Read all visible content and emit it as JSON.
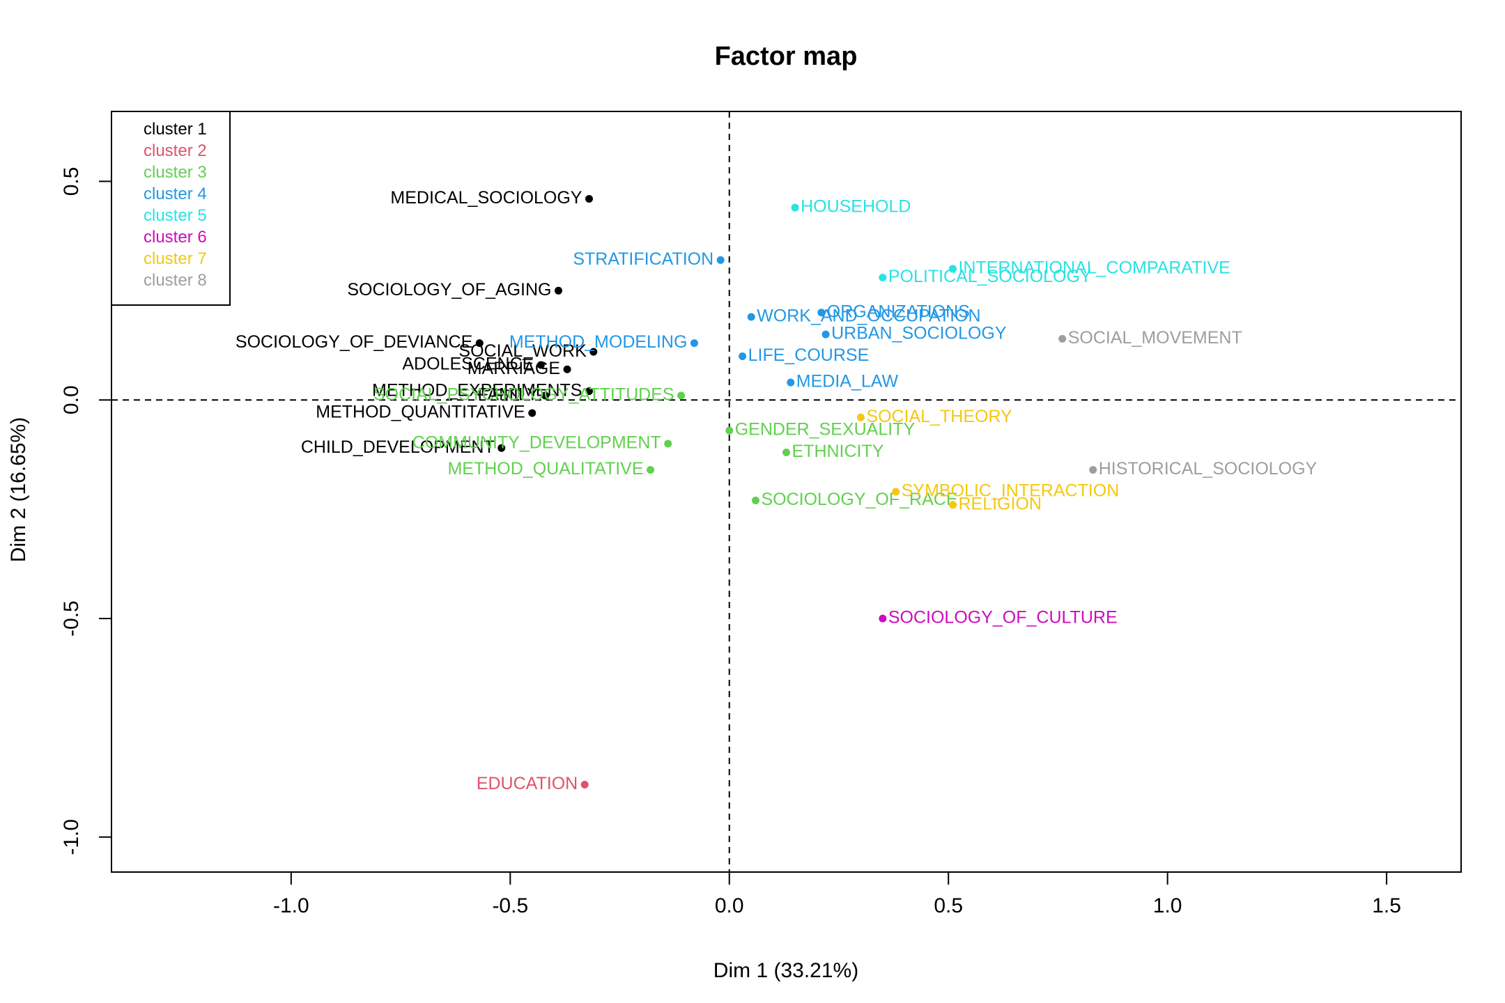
{
  "chart_data": {
    "type": "scatter",
    "title": "Factor map",
    "xlabel": "Dim 1 (33.21%)",
    "ylabel": "Dim 2 (16.65%)",
    "xlim": [
      -1.41,
      1.67
    ],
    "ylim": [
      -1.08,
      0.66
    ],
    "xticks": [
      -1.0,
      -0.5,
      0.0,
      0.5,
      1.0,
      1.5
    ],
    "xtick_labels": [
      "-1.0",
      "-0.5",
      "0.0",
      "0.5",
      "1.0",
      "1.5"
    ],
    "yticks": [
      -1.0,
      -0.5,
      0.0,
      0.5
    ],
    "ytick_labels": [
      "-1.0",
      "-0.5",
      "0.0",
      "0.5"
    ],
    "reference_lines": {
      "x": 0,
      "y": 0,
      "style": "dashed"
    },
    "grid": false,
    "legend_position": "top-left",
    "clusters": [
      {
        "name": "cluster 1",
        "color": "#000000"
      },
      {
        "name": "cluster 2",
        "color": "#DF536B"
      },
      {
        "name": "cluster 3",
        "color": "#61D04F"
      },
      {
        "name": "cluster 4",
        "color": "#2297E6"
      },
      {
        "name": "cluster 5",
        "color": "#28E2E5"
      },
      {
        "name": "cluster 6",
        "color": "#CD0BBC"
      },
      {
        "name": "cluster 7",
        "color": "#F5C710"
      },
      {
        "name": "cluster 8",
        "color": "#9E9E9E"
      }
    ],
    "points": [
      {
        "label": "MEDICAL_SOCIOLOGY",
        "x": -0.32,
        "y": 0.46,
        "cluster": 1
      },
      {
        "label": "SOCIOLOGY_OF_AGING",
        "x": -0.39,
        "y": 0.25,
        "cluster": 1
      },
      {
        "label": "SOCIOLOGY_OF_DEVIANCE",
        "x": -0.57,
        "y": 0.13,
        "cluster": 1
      },
      {
        "label": "ADOLESCENCE",
        "x": -0.43,
        "y": 0.08,
        "cluster": 1
      },
      {
        "label": "MARRIAGE",
        "x": -0.37,
        "y": 0.07,
        "cluster": 1
      },
      {
        "label": "SOCIAL_WORK",
        "x": -0.31,
        "y": 0.11,
        "cluster": 1
      },
      {
        "label": "FAMILY",
        "x": -0.42,
        "y": 0.01,
        "cluster": 1
      },
      {
        "label": "METHOD_EXPERIMENTS",
        "x": -0.32,
        "y": 0.02,
        "cluster": 1
      },
      {
        "label": "METHOD_QUANTITATIVE",
        "x": -0.45,
        "y": -0.03,
        "cluster": 1
      },
      {
        "label": "CHILD_DEVELOPMENT",
        "x": -0.52,
        "y": -0.11,
        "cluster": 1
      },
      {
        "label": "EDUCATION",
        "x": -0.33,
        "y": -0.88,
        "cluster": 2
      },
      {
        "label": "SOCIAL_PSYCHOLOGY_ATTITUDES",
        "x": -0.11,
        "y": 0.01,
        "cluster": 3
      },
      {
        "label": "GENDER_SEXUALITY",
        "x": 0.0,
        "y": -0.07,
        "cluster": 3
      },
      {
        "label": "COMMUNITY_DEVELOPMENT",
        "x": -0.14,
        "y": -0.1,
        "cluster": 3
      },
      {
        "label": "ETHNICITY",
        "x": 0.13,
        "y": -0.12,
        "cluster": 3
      },
      {
        "label": "METHOD_QUALITATIVE",
        "x": -0.18,
        "y": -0.16,
        "cluster": 3
      },
      {
        "label": "SOCIOLOGY_OF_RACE",
        "x": 0.06,
        "y": -0.23,
        "cluster": 3
      },
      {
        "label": "STRATIFICATION",
        "x": -0.02,
        "y": 0.32,
        "cluster": 4
      },
      {
        "label": "WORK_AND_OCCUPATION",
        "x": 0.05,
        "y": 0.19,
        "cluster": 4
      },
      {
        "label": "METHOD_MODELING",
        "x": -0.08,
        "y": 0.13,
        "cluster": 4
      },
      {
        "label": "LIFE_COURSE",
        "x": 0.03,
        "y": 0.1,
        "cluster": 4
      },
      {
        "label": "ORGANIZATIONS",
        "x": 0.21,
        "y": 0.2,
        "cluster": 4
      },
      {
        "label": "URBAN_SOCIOLOGY",
        "x": 0.22,
        "y": 0.15,
        "cluster": 4
      },
      {
        "label": "MEDIA_LAW",
        "x": 0.14,
        "y": 0.04,
        "cluster": 4
      },
      {
        "label": "HOUSEHOLD",
        "x": 0.15,
        "y": 0.44,
        "cluster": 5
      },
      {
        "label": "INTERNATIONAL_COMPARATIVE",
        "x": 0.51,
        "y": 0.3,
        "cluster": 5
      },
      {
        "label": "POLITICAL_SOCIOLOGY",
        "x": 0.35,
        "y": 0.28,
        "cluster": 5
      },
      {
        "label": "SOCIOLOGY_OF_CULTURE",
        "x": 0.35,
        "y": -0.5,
        "cluster": 6
      },
      {
        "label": "SOCIAL_THEORY",
        "x": 0.3,
        "y": -0.04,
        "cluster": 7
      },
      {
        "label": "SYMBOLIC_INTERACTION",
        "x": 0.38,
        "y": -0.21,
        "cluster": 7
      },
      {
        "label": "RELIGION",
        "x": 0.51,
        "y": -0.24,
        "cluster": 7
      },
      {
        "label": "SOCIAL_MOVEMENT",
        "x": 0.76,
        "y": 0.14,
        "cluster": 8
      },
      {
        "label": "HISTORICAL_SOCIOLOGY",
        "x": 0.83,
        "y": -0.16,
        "cluster": 8
      }
    ]
  }
}
